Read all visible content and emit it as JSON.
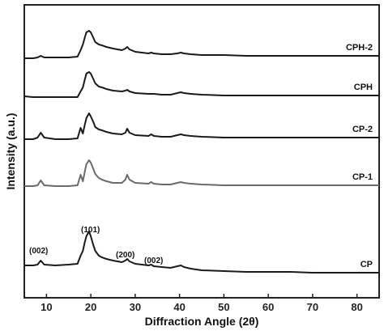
{
  "chart_data": {
    "type": "line",
    "xlabel": "Diffraction Angle (2θ)",
    "ylabel": "Intensity (a.u.)",
    "xlim": [
      5,
      85
    ],
    "x_ticks": [
      10,
      20,
      30,
      40,
      50,
      60,
      70,
      80
    ],
    "y_ticks": "none",
    "grid": false,
    "legend": "none (series labelled at right end of each trace)",
    "x": [
      5,
      7,
      8,
      8.7,
      9.5,
      12,
      15,
      17,
      17.7,
      18.2,
      18.6,
      19,
      19.6,
      20,
      20.5,
      21,
      21.8,
      22.5,
      23.5,
      25,
      27,
      27.8,
      28.2,
      28.7,
      30,
      33,
      33.6,
      34.2,
      36,
      38,
      39.5,
      40.3,
      41,
      42.5,
      45,
      50,
      55,
      60,
      65,
      70,
      75,
      80,
      85
    ],
    "series": [
      {
        "name": "CPH-2",
        "color": "#1a1a1a",
        "values": [
          72,
          72,
          71,
          69,
          71,
          71,
          71,
          70,
          62,
          55,
          47,
          40,
          38,
          40,
          46,
          52,
          55,
          56,
          58,
          60,
          62,
          60,
          58,
          61,
          64,
          66,
          65,
          66,
          67,
          67,
          66,
          65,
          66,
          67,
          68,
          68,
          69,
          69,
          69,
          69,
          69,
          69,
          69
        ]
      },
      {
        "name": "CPH",
        "color": "#1a1a1a",
        "values": [
          119,
          120,
          120,
          120,
          120,
          120,
          120,
          120,
          113,
          108,
          99,
          91,
          89,
          91,
          97,
          103,
          107,
          108,
          110,
          112,
          113,
          112,
          111,
          113,
          115,
          116,
          116,
          116,
          117,
          117,
          115,
          114,
          115,
          116,
          117,
          118,
          118,
          118,
          118,
          118,
          118,
          118,
          118
        ]
      },
      {
        "name": "CP-2",
        "color": "#1a1a1a",
        "values": [
          172,
          172,
          170,
          164,
          170,
          172,
          172,
          171,
          158,
          165,
          155,
          146,
          140,
          144,
          150,
          157,
          160,
          161,
          163,
          165,
          166,
          164,
          159,
          164,
          167,
          168,
          166,
          168,
          169,
          169,
          167,
          166,
          167,
          168,
          169,
          170,
          170,
          170,
          170,
          170,
          170,
          170,
          170
        ]
      },
      {
        "name": "CP-1",
        "color": "#6a6a6a",
        "values": [
          230,
          230,
          229,
          223,
          229,
          230,
          230,
          229,
          216,
          224,
          213,
          203,
          198,
          201,
          208,
          215,
          220,
          222,
          224,
          226,
          226,
          222,
          216,
          222,
          226,
          227,
          225,
          227,
          228,
          228,
          226,
          225,
          226,
          227,
          228,
          229,
          229,
          229,
          229,
          229,
          229,
          229,
          229
        ]
      },
      {
        "name": "CP",
        "color": "#1a1a1a",
        "values": [
          328,
          328,
          327,
          322,
          327,
          328,
          327,
          326,
          316,
          310,
          300,
          292,
          286,
          292,
          302,
          310,
          316,
          318,
          320,
          322,
          324,
          322,
          320,
          323,
          326,
          328,
          327,
          329,
          330,
          331,
          329,
          328,
          330,
          332,
          334,
          335,
          336,
          336,
          336,
          337,
          337,
          337,
          337
        ]
      }
    ],
    "annotations": [
      "(002)",
      "(101)",
      "(200)",
      "(002)"
    ]
  }
}
